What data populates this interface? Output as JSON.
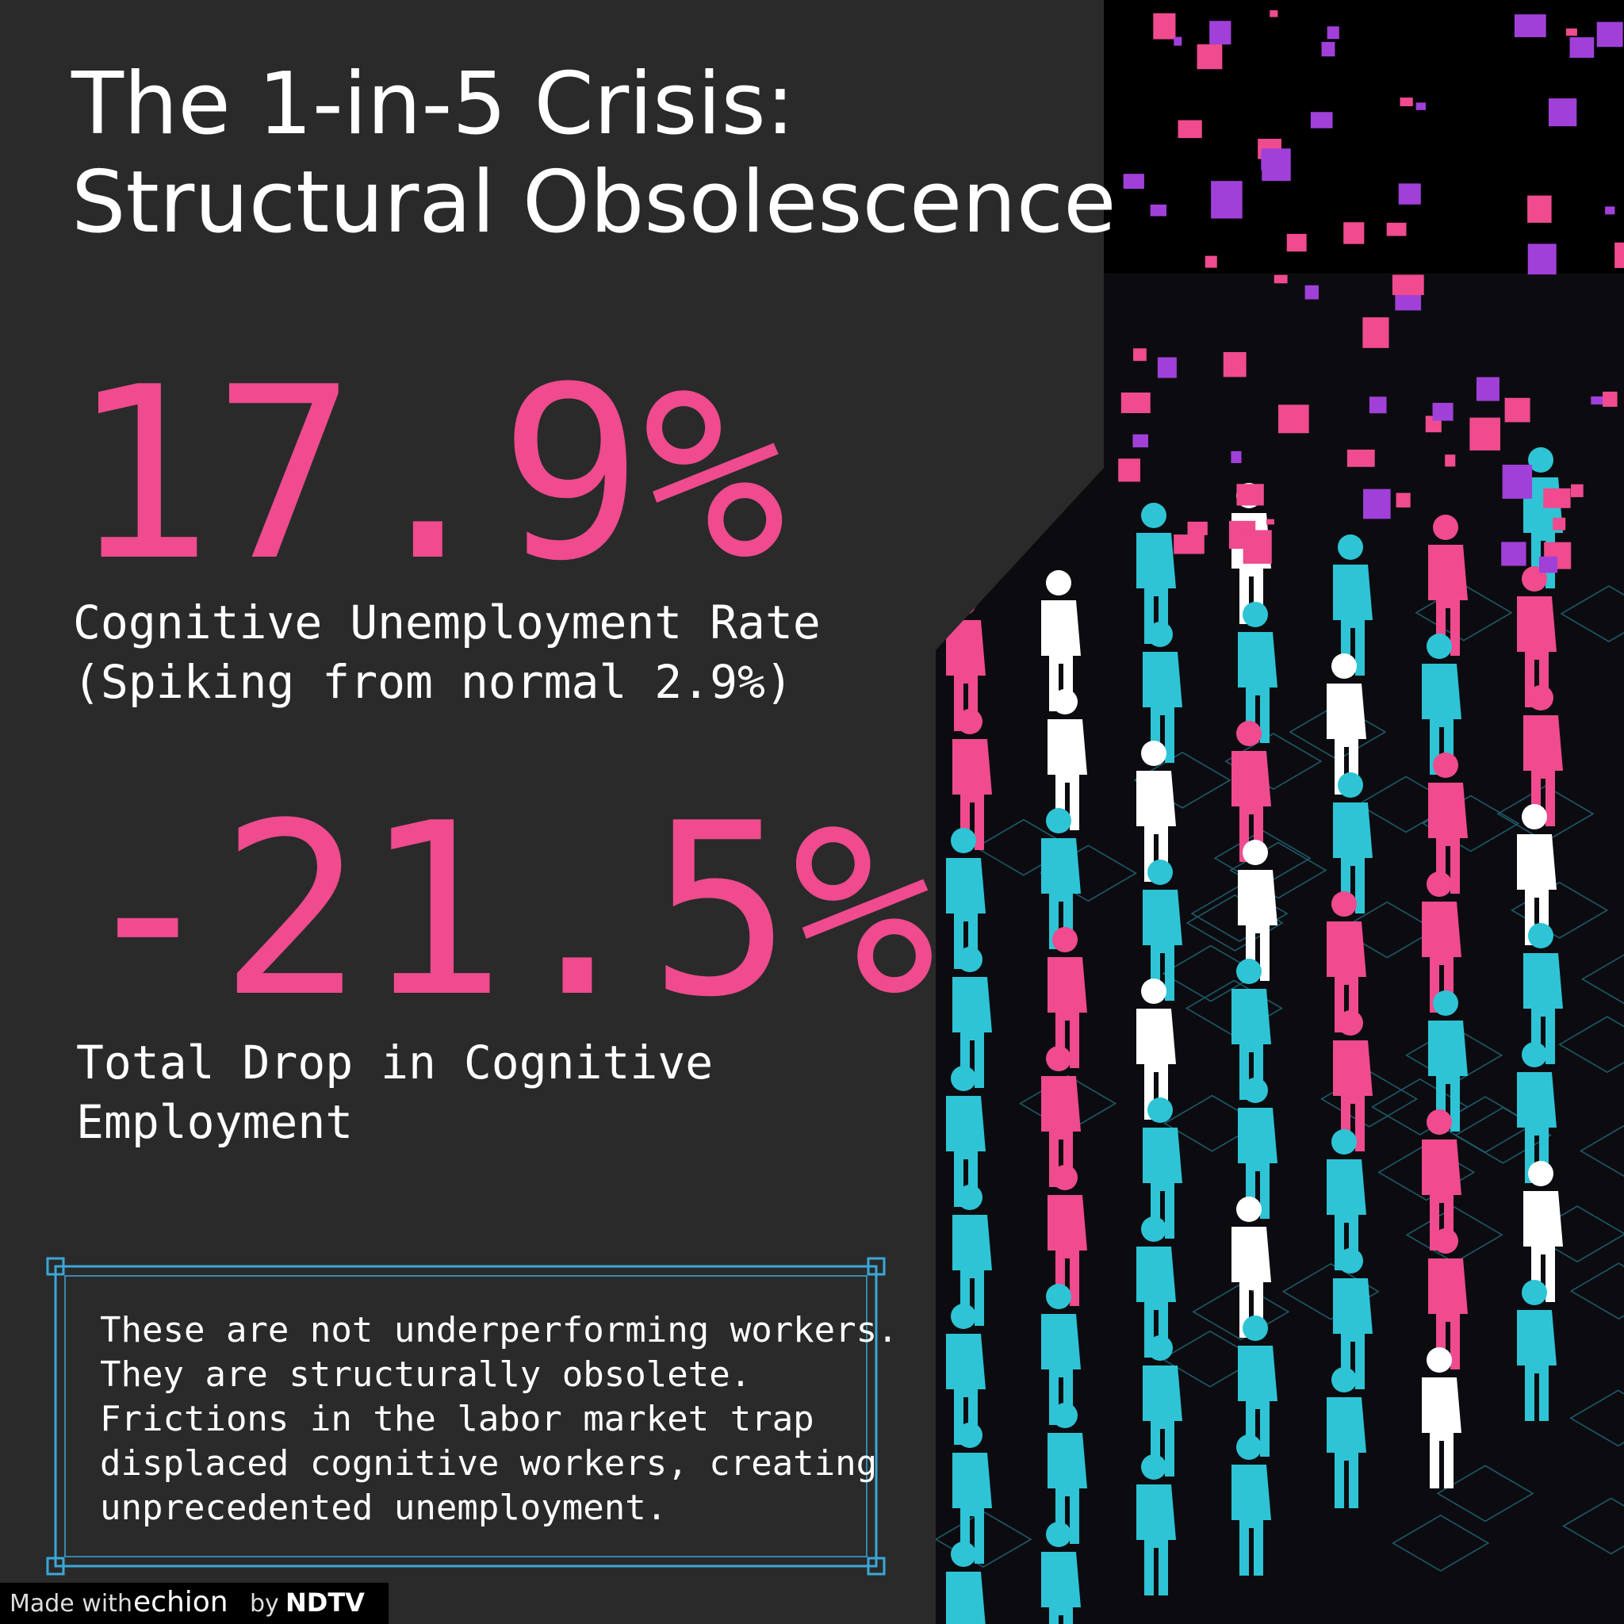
{
  "header": {
    "title_lines": [
      "The 1-in-5 Crisis:",
      "Structural Obsolescence"
    ]
  },
  "stats": [
    {
      "value": "17.9%",
      "label_lines": [
        "Cognitive Unemployment Rate",
        "(Spiking from normal 2.9%)"
      ]
    },
    {
      "value": "-21.5%",
      "label_lines": [
        "Total Drop in Cognitive",
        "Employment"
      ]
    }
  ],
  "callout": {
    "lines": [
      "These are not underperforming workers.",
      "They are structurally obsolete.",
      "Frictions in the labor market trap",
      "displaced cognitive workers, creating",
      "unprecedented unemployment."
    ]
  },
  "footer": {
    "made_with": "Made with",
    "brand": "echion",
    "by": "by",
    "publisher": "NDTV"
  }
}
